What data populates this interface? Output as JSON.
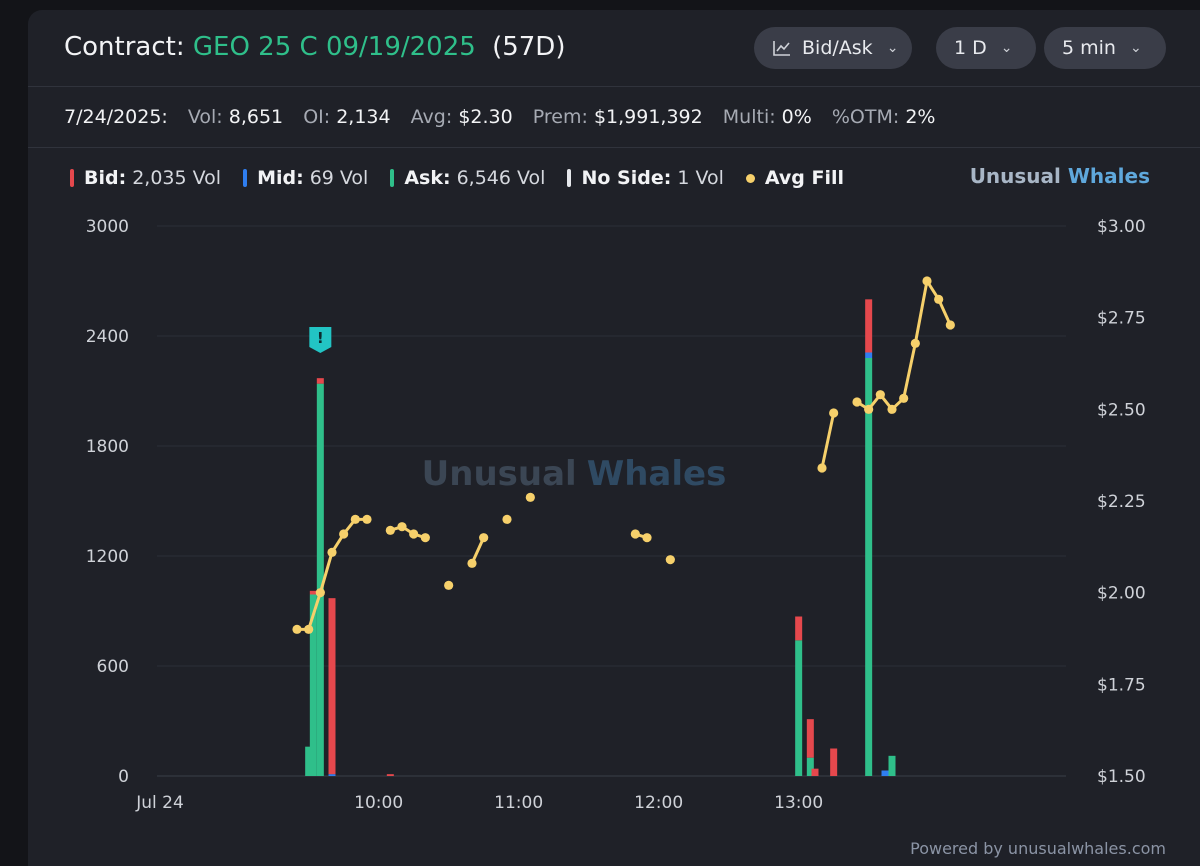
{
  "header": {
    "contract_label": "Contract:",
    "contract": "GEO 25 C 09/19/2025",
    "days": "(57D)",
    "controls": [
      {
        "label": "Bid/Ask",
        "icon": "line-chart-icon"
      },
      {
        "label": "1 D"
      },
      {
        "label": "5 min"
      }
    ]
  },
  "stats": {
    "date": "7/24/2025:",
    "vol_label": "Vol:",
    "vol": "8,651",
    "oi_label": "OI:",
    "oi": "2,134",
    "avg_label": "Avg:",
    "avg": "$2.30",
    "prem_label": "Prem:",
    "prem": "$1,991,392",
    "multi_label": "Multi:",
    "multi": "0%",
    "otm_label": "%OTM:",
    "otm": "2%"
  },
  "legend": {
    "bid_label": "Bid:",
    "bid_value": "2,035 Vol",
    "mid_label": "Mid:",
    "mid_value": "69 Vol",
    "ask_label": "Ask:",
    "ask_value": "6,546 Vol",
    "noside_label": "No Side:",
    "noside_value": "1 Vol",
    "fill_label": "Avg Fill"
  },
  "brand": {
    "word1": "Unusual",
    "word2": "Whales"
  },
  "watermark": {
    "word1": "Unusual",
    "word2": "Whales"
  },
  "footer": "Powered by unusualwhales.com",
  "colors": {
    "bid": "#e5484d",
    "mid": "#2f7ef0",
    "ask": "#2fbf8a",
    "noside": "#e6e8ec",
    "fill": "#f6d06b",
    "contract": "#2fbf8a",
    "grid": "#2b2e37"
  },
  "chart_data": {
    "type": "bar",
    "x_unit": "time of day (5-min bars)",
    "x_ticks": [
      "Jul 24",
      "10:00",
      "11:00",
      "12:00",
      "13:00"
    ],
    "y_left_ticks": [
      "0",
      "600",
      "1200",
      "1800",
      "2400",
      "3000"
    ],
    "y_left_range": [
      0,
      3000
    ],
    "y_right_ticks": [
      "$1.50",
      "$1.75",
      "$2.00",
      "$2.25",
      "$2.50",
      "$2.75",
      "$3.00"
    ],
    "y_right_range": [
      1.5,
      3.0
    ],
    "grid": true,
    "alert_marker": {
      "label": "!",
      "time": "09:35"
    },
    "bars": [
      {
        "t": "09:30",
        "ask": 160,
        "bid": 0,
        "mid": 0
      },
      {
        "t": "09:32",
        "ask": 990,
        "bid": 20,
        "mid": 0
      },
      {
        "t": "09:35",
        "ask": 2140,
        "bid": 30,
        "mid": 0
      },
      {
        "t": "09:40",
        "ask": 0,
        "bid": 960,
        "mid": 10
      },
      {
        "t": "10:05",
        "ask": 0,
        "bid": 10,
        "mid": 0
      },
      {
        "t": "13:00",
        "ask": 740,
        "bid": 130,
        "mid": 0
      },
      {
        "t": "13:05",
        "ask": 100,
        "bid": 210,
        "mid": 0
      },
      {
        "t": "13:07",
        "ask": 0,
        "bid": 40,
        "mid": 0
      },
      {
        "t": "13:15",
        "ask": 0,
        "bid": 150,
        "mid": 0
      },
      {
        "t": "13:30",
        "ask": 2280,
        "bid": 290,
        "mid": 30
      },
      {
        "t": "13:37",
        "ask": 0,
        "bid": 0,
        "mid": 30
      },
      {
        "t": "13:40",
        "ask": 110,
        "bid": 0,
        "mid": 0
      }
    ],
    "avg_fill_segments": [
      [
        [
          "09:25",
          1.9
        ],
        [
          "09:30",
          1.9
        ],
        [
          "09:35",
          2.0
        ],
        [
          "09:40",
          2.11
        ],
        [
          "09:45",
          2.16
        ],
        [
          "09:50",
          2.2
        ],
        [
          "09:55",
          2.2
        ]
      ],
      [
        [
          "10:05",
          2.17
        ],
        [
          "10:10",
          2.18
        ],
        [
          "10:15",
          2.16
        ],
        [
          "10:20",
          2.15
        ]
      ],
      [
        [
          "10:30",
          2.02
        ]
      ],
      [
        [
          "10:40",
          2.08
        ],
        [
          "10:45",
          2.15
        ]
      ],
      [
        [
          "10:55",
          2.2
        ]
      ],
      [
        [
          "11:05",
          2.26
        ]
      ],
      [
        [
          "11:50",
          2.16
        ],
        [
          "11:55",
          2.15
        ]
      ],
      [
        [
          "12:05",
          2.09
        ]
      ],
      [
        [
          "13:10",
          2.34
        ],
        [
          "13:15",
          2.49
        ]
      ],
      [
        [
          "13:25",
          2.52
        ],
        [
          "13:30",
          2.5
        ],
        [
          "13:35",
          2.54
        ],
        [
          "13:40",
          2.5
        ],
        [
          "13:45",
          2.53
        ],
        [
          "13:50",
          2.68
        ],
        [
          "13:55",
          2.85
        ],
        [
          "14:00",
          2.8
        ],
        [
          "14:05",
          2.73
        ]
      ]
    ]
  }
}
